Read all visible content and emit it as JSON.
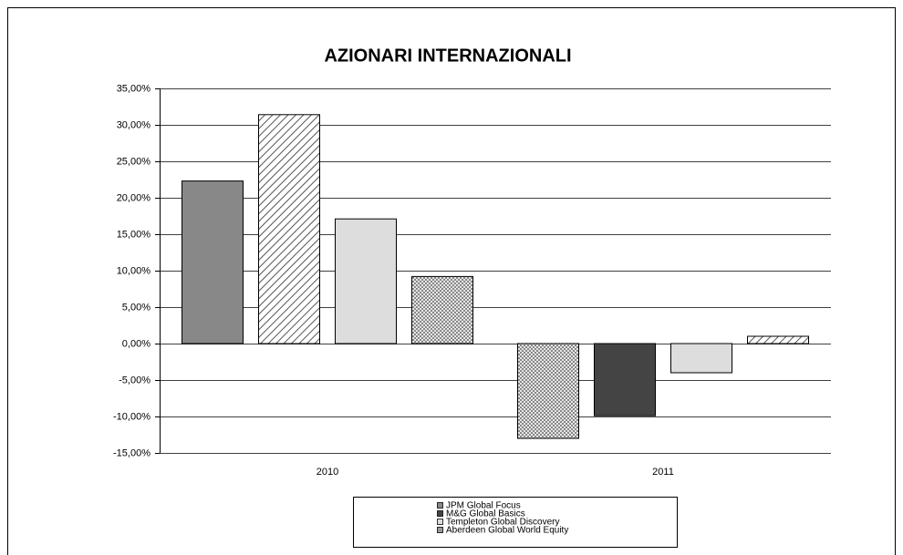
{
  "chart_data": {
    "type": "bar",
    "title": "AZIONARI INTERNAZIONALI",
    "categories": [
      "2010",
      "2011"
    ],
    "series": [
      {
        "name": "JPM Global Focus",
        "color": "#888888",
        "fills": [
          "#888888",
          "dots"
        ],
        "values": [
          22.3,
          -13.0
        ]
      },
      {
        "name": "M&G Global Basics",
        "color": "#444444",
        "fills": [
          "hatch",
          "#444444"
        ],
        "values": [
          31.4,
          -9.9
        ]
      },
      {
        "name": "Templeton Global Discovery",
        "color": "#dddddd",
        "fills": [
          "#dddddd",
          "#dddddd"
        ],
        "values": [
          17.1,
          -4.0
        ]
      },
      {
        "name": "Aberdeen Global World Equity",
        "color": "#999999",
        "fills": [
          "dots",
          "hatch"
        ],
        "values": [
          9.2,
          1.0
        ]
      }
    ],
    "ylim": [
      -15,
      35
    ],
    "yticks": [
      {
        "value": -15,
        "label": "-15,00%"
      },
      {
        "value": -10,
        "label": "-10,00%"
      },
      {
        "value": -5,
        "label": "-5,00%"
      },
      {
        "value": 0,
        "label": "0,00%"
      },
      {
        "value": 5,
        "label": "5,00%"
      },
      {
        "value": 10,
        "label": "10,00%"
      },
      {
        "value": 15,
        "label": "15,00%"
      },
      {
        "value": 20,
        "label": "20,00%"
      },
      {
        "value": 25,
        "label": "25,00%"
      },
      {
        "value": 30,
        "label": "30,00%"
      },
      {
        "value": 35,
        "label": "35,00%"
      }
    ],
    "grid": true
  }
}
